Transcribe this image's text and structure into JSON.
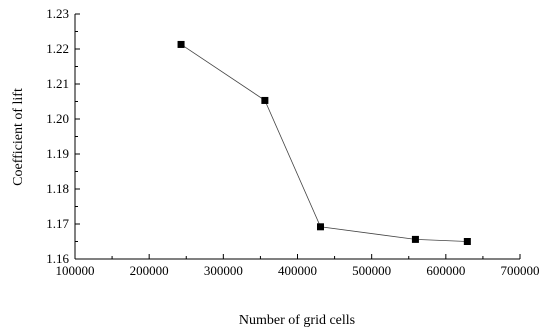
{
  "chart_data": {
    "type": "line",
    "title": "",
    "xlabel": "Number of grid cells",
    "ylabel": "Coefficient of lift",
    "xlim": [
      100000,
      700000
    ],
    "ylim": [
      1.16,
      1.23
    ],
    "xticks": [
      "100000",
      "200000",
      "300000",
      "400000",
      "500000",
      "600000",
      "700000"
    ],
    "xtick_values": [
      100000,
      200000,
      300000,
      400000,
      500000,
      600000,
      700000
    ],
    "yticks": [
      "1.16",
      "1.17",
      "1.18",
      "1.19",
      "1.20",
      "1.21",
      "1.22",
      "1.23"
    ],
    "ytick_values": [
      1.16,
      1.17,
      1.18,
      1.19,
      1.2,
      1.21,
      1.22,
      1.23
    ],
    "grid": false,
    "legend": "none",
    "marker": "square",
    "line_color": "#444444",
    "marker_color": "#000000",
    "series": [
      {
        "x": [
          243000,
          356000,
          431000,
          559000,
          629000
        ],
        "y": [
          1.2213,
          1.2053,
          1.1692,
          1.1656,
          1.165
        ]
      }
    ]
  }
}
